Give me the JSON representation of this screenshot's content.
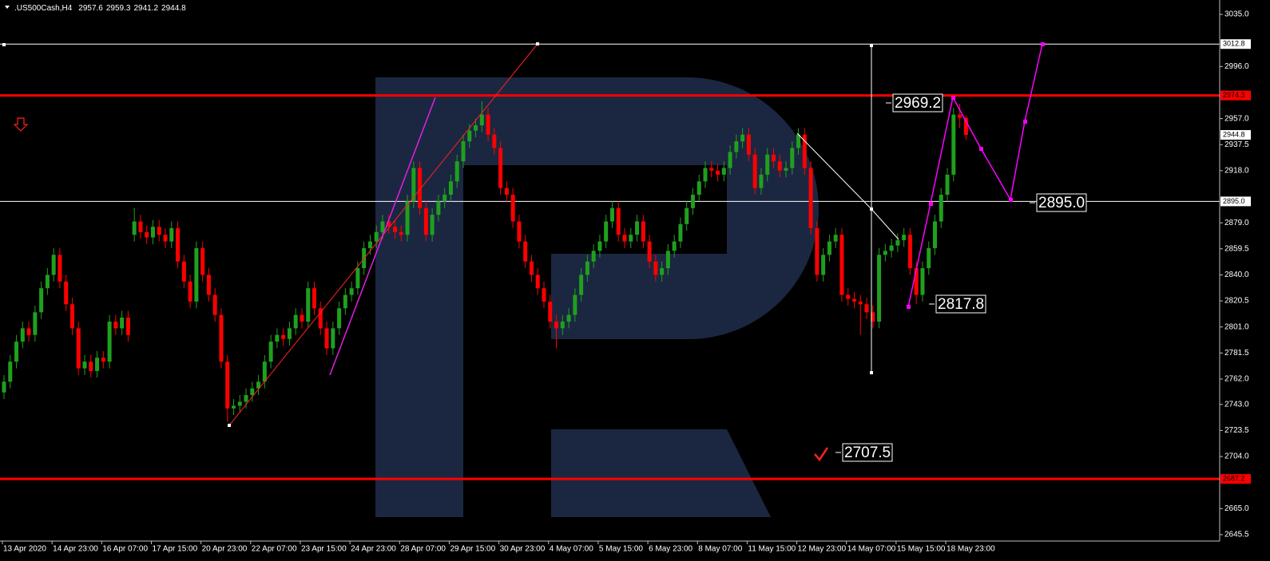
{
  "chart_data": {
    "type": "candlestick",
    "title": ".US500Cash,H4",
    "up_color": "#1fa01f",
    "down_color": "#ff0000",
    "ylim": [
      2640.7,
      3044.6
    ],
    "yticks": [
      {
        "value": 3035.0,
        "label": "3035.0"
      },
      {
        "value": 2996.0,
        "label": "2996.0"
      },
      {
        "value": 2957.0,
        "label": "2957.0"
      },
      {
        "value": 2937.5,
        "label": "2937.5"
      },
      {
        "value": 2918.0,
        "label": "2918.0"
      },
      {
        "value": 2879.0,
        "label": "2879.0"
      },
      {
        "value": 2859.5,
        "label": "2859.5"
      },
      {
        "value": 2840.0,
        "label": "2840.0"
      },
      {
        "value": 2820.5,
        "label": "2820.5"
      },
      {
        "value": 2801.0,
        "label": "2801.0"
      },
      {
        "value": 2781.5,
        "label": "2781.5"
      },
      {
        "value": 2762.0,
        "label": "2762.0"
      },
      {
        "value": 2743.0,
        "label": "2743.0"
      },
      {
        "value": 2723.5,
        "label": "2723.5"
      },
      {
        "value": 2704.0,
        "label": "2704.0"
      },
      {
        "value": 2665.0,
        "label": "2665.0"
      },
      {
        "value": 2645.5,
        "label": "2645.5"
      }
    ],
    "time_labels": [
      "13 Apr 2020",
      "14 Apr 23:00",
      "16 Apr 07:00",
      "17 Apr 15:00",
      "20 Apr 23:00",
      "22 Apr 07:00",
      "23 Apr 15:00",
      "24 Apr 23:00",
      "28 Apr 07:00",
      "29 Apr 15:00",
      "30 Apr 23:00",
      "4 May 07:00",
      "5 May 15:00",
      "6 May 23:00",
      "8 May 07:00",
      "11 May 15:00",
      "12 May 23:00",
      "14 May 07:00",
      "15 May 15:00",
      "18 May 23:00"
    ],
    "price_levels": [
      {
        "value": 3012.8,
        "label": "3012.8",
        "color": "#ffffff",
        "line": true
      },
      {
        "value": 2974.3,
        "label": "2974.3",
        "color": "#ff0000",
        "line": true
      },
      {
        "value": 2944.8,
        "label": "2944.8",
        "color": "#ffffff",
        "line": false
      },
      {
        "value": 2895.0,
        "label": "2895.0",
        "color": "#ffffff",
        "line": true
      },
      {
        "value": 2687.2,
        "label": "2687.2",
        "color": "#ff0000",
        "line": true
      }
    ],
    "annotations": [
      "2969.2",
      "2895.0",
      "2817.8",
      "2707.5"
    ],
    "open": [
      2752,
      2760,
      2775,
      2790,
      2800,
      2795,
      2812,
      2830,
      2840,
      2855,
      2835,
      2818,
      2800,
      2770,
      2775,
      2768,
      2778,
      2775,
      2805,
      2800,
      2808,
      2870,
      2880,
      2872,
      2868,
      2876,
      2870,
      2865,
      2875,
      2850,
      2835,
      2820,
      2860,
      2840,
      2825,
      2810,
      2775,
      2740,
      2742,
      2745,
      2750,
      2755,
      2760,
      2775,
      2790,
      2795,
      2792,
      2800,
      2810,
      2805,
      2830,
      2815,
      2800,
      2785,
      2800,
      2815,
      2825,
      2830,
      2845,
      2860,
      2865,
      2872,
      2880,
      2876,
      2872,
      2870,
      2895,
      2920,
      2890,
      2870,
      2885,
      2895,
      2900,
      2910,
      2925,
      2940,
      2948,
      2952,
      2960,
      2945,
      2935,
      2905,
      2900,
      2880,
      2865,
      2850,
      2840,
      2830,
      2820,
      2805,
      2800,
      2805,
      2810,
      2825,
      2840,
      2850,
      2858,
      2865,
      2880,
      2890,
      2870,
      2865,
      2870,
      2880,
      2865,
      2850,
      2840,
      2845,
      2858,
      2865,
      2878,
      2890,
      2900,
      2910,
      2920,
      2918,
      2915,
      2920,
      2932,
      2940,
      2945,
      2930,
      2905,
      2915,
      2930,
      2925,
      2918,
      2920,
      2935,
      2945,
      2920,
      2875,
      2840,
      2855,
      2865,
      2870,
      2825,
      2822,
      2820,
      2818,
      2812,
      2805,
      2855,
      2858,
      2862,
      2866,
      2870,
      2845,
      2825,
      2845,
      2860,
      2880,
      2900,
      2915,
      2960,
      2957.6
    ],
    "high": [
      2765,
      2780,
      2795,
      2805,
      2805,
      2817,
      2835,
      2845,
      2860,
      2860,
      2840,
      2823,
      2805,
      2780,
      2780,
      2783,
      2783,
      2810,
      2810,
      2813,
      2813,
      2890,
      2885,
      2877,
      2881,
      2881,
      2875,
      2880,
      2880,
      2855,
      2840,
      2865,
      2865,
      2845,
      2830,
      2815,
      2780,
      2747,
      2750,
      2755,
      2760,
      2765,
      2780,
      2795,
      2800,
      2800,
      2805,
      2815,
      2815,
      2835,
      2835,
      2820,
      2805,
      2805,
      2820,
      2830,
      2835,
      2850,
      2865,
      2870,
      2877,
      2885,
      2885,
      2881,
      2877,
      2900,
      2925,
      2925,
      2895,
      2890,
      2900,
      2905,
      2915,
      2930,
      2945,
      2953,
      2957,
      2970,
      2965,
      2950,
      2940,
      2910,
      2905,
      2885,
      2870,
      2855,
      2845,
      2835,
      2825,
      2810,
      2810,
      2815,
      2830,
      2845,
      2855,
      2863,
      2870,
      2885,
      2895,
      2895,
      2875,
      2875,
      2885,
      2885,
      2870,
      2855,
      2850,
      2863,
      2870,
      2883,
      2895,
      2905,
      2915,
      2925,
      2925,
      2923,
      2925,
      2937,
      2945,
      2950,
      2950,
      2935,
      2920,
      2935,
      2935,
      2930,
      2925,
      2940,
      2950,
      2950,
      2925,
      2880,
      2860,
      2870,
      2875,
      2875,
      2830,
      2827,
      2825,
      2823,
      2817,
      2860,
      2863,
      2867,
      2871,
      2875,
      2875,
      2850,
      2850,
      2865,
      2885,
      2905,
      2920,
      2965,
      2968,
      2959.3
    ],
    "low": [
      2747,
      2755,
      2770,
      2785,
      2790,
      2790,
      2807,
      2825,
      2835,
      2830,
      2813,
      2795,
      2765,
      2765,
      2763,
      2763,
      2770,
      2770,
      2795,
      2795,
      2790,
      2865,
      2867,
      2863,
      2863,
      2865,
      2860,
      2860,
      2845,
      2830,
      2815,
      2815,
      2835,
      2820,
      2805,
      2770,
      2730,
      2735,
      2737,
      2740,
      2745,
      2750,
      2755,
      2770,
      2785,
      2787,
      2787,
      2795,
      2800,
      2800,
      2810,
      2795,
      2780,
      2780,
      2795,
      2810,
      2820,
      2825,
      2840,
      2855,
      2860,
      2867,
      2871,
      2867,
      2865,
      2865,
      2890,
      2885,
      2865,
      2865,
      2880,
      2890,
      2895,
      2905,
      2920,
      2935,
      2943,
      2947,
      2940,
      2930,
      2900,
      2895,
      2875,
      2860,
      2845,
      2835,
      2825,
      2815,
      2800,
      2785,
      2795,
      2800,
      2805,
      2820,
      2835,
      2845,
      2853,
      2860,
      2875,
      2865,
      2860,
      2860,
      2865,
      2860,
      2845,
      2835,
      2835,
      2840,
      2853,
      2860,
      2873,
      2885,
      2895,
      2905,
      2913,
      2910,
      2910,
      2915,
      2927,
      2935,
      2925,
      2900,
      2900,
      2910,
      2920,
      2913,
      2913,
      2915,
      2930,
      2915,
      2870,
      2835,
      2835,
      2850,
      2860,
      2820,
      2817,
      2815,
      2795,
      2807,
      2800,
      2800,
      2850,
      2853,
      2857,
      2861,
      2840,
      2818,
      2820,
      2840,
      2855,
      2875,
      2895,
      2910,
      2950,
      2941.2
    ],
    "close": [
      2760,
      2775,
      2790,
      2800,
      2795,
      2812,
      2830,
      2840,
      2855,
      2835,
      2818,
      2800,
      2770,
      2775,
      2768,
      2778,
      2775,
      2805,
      2800,
      2808,
      2795,
      2880,
      2872,
      2868,
      2876,
      2870,
      2865,
      2875,
      2850,
      2835,
      2820,
      2860,
      2840,
      2825,
      2810,
      2775,
      2740,
      2742,
      2745,
      2750,
      2755,
      2760,
      2775,
      2790,
      2795,
      2792,
      2800,
      2810,
      2805,
      2830,
      2815,
      2800,
      2785,
      2800,
      2815,
      2825,
      2830,
      2845,
      2860,
      2865,
      2872,
      2880,
      2876,
      2872,
      2870,
      2895,
      2920,
      2890,
      2870,
      2885,
      2895,
      2900,
      2910,
      2925,
      2940,
      2948,
      2952,
      2960,
      2945,
      2935,
      2905,
      2900,
      2880,
      2865,
      2850,
      2840,
      2830,
      2820,
      2805,
      2800,
      2805,
      2810,
      2825,
      2840,
      2850,
      2858,
      2865,
      2880,
      2890,
      2870,
      2865,
      2870,
      2880,
      2865,
      2850,
      2840,
      2845,
      2858,
      2865,
      2878,
      2890,
      2900,
      2910,
      2920,
      2918,
      2915,
      2920,
      2932,
      2940,
      2945,
      2930,
      2905,
      2915,
      2930,
      2925,
      2918,
      2920,
      2935,
      2945,
      2920,
      2875,
      2840,
      2855,
      2865,
      2870,
      2825,
      2822,
      2820,
      2818,
      2812,
      2805,
      2855,
      2858,
      2862,
      2866,
      2870,
      2845,
      2825,
      2845,
      2860,
      2880,
      2900,
      2915,
      2960,
      2957.6,
      2944.8
    ]
  }
}
